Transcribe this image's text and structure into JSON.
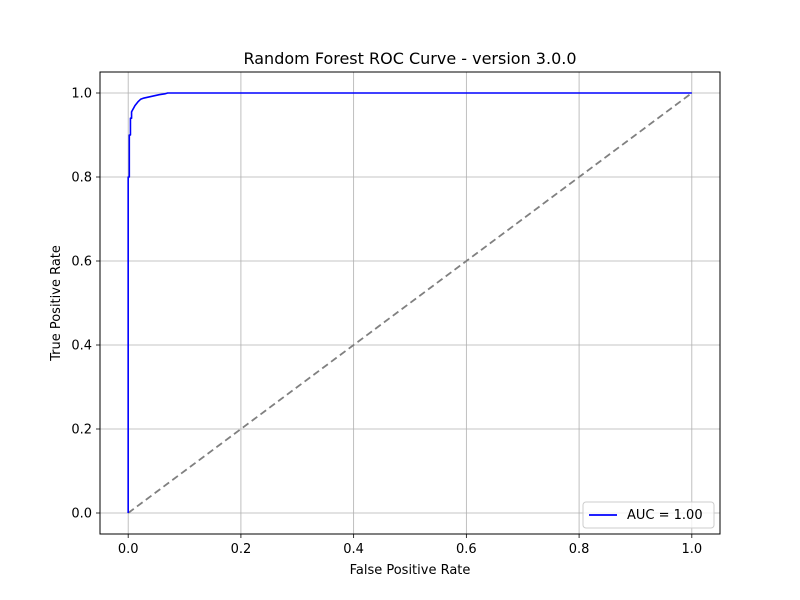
{
  "chart_data": {
    "type": "line",
    "title": "Random Forest ROC Curve - version 3.0.0",
    "xlabel": "False Positive Rate",
    "ylabel": "True Positive Rate",
    "xlim": [
      -0.05,
      1.05
    ],
    "ylim": [
      -0.05,
      1.05
    ],
    "xticks": [
      "0.0",
      "0.2",
      "0.4",
      "0.6",
      "0.8",
      "1.0"
    ],
    "yticks": [
      "0.0",
      "0.2",
      "0.4",
      "0.6",
      "0.8",
      "1.0"
    ],
    "grid": true,
    "legend_position": "lower-right",
    "series": [
      {
        "name": "AUC = 1.00",
        "color": "#0000ff",
        "style": "solid",
        "x": [
          0.0,
          0.0,
          0.002,
          0.002,
          0.004,
          0.004,
          0.006,
          0.006,
          0.008,
          0.01,
          0.012,
          0.015,
          0.018,
          0.022,
          0.028,
          0.035,
          0.045,
          0.055,
          0.065,
          0.07,
          1.0
        ],
        "y": [
          0.0,
          0.8,
          0.8,
          0.9,
          0.9,
          0.94,
          0.94,
          0.955,
          0.96,
          0.965,
          0.97,
          0.975,
          0.98,
          0.985,
          0.988,
          0.99,
          0.993,
          0.996,
          0.998,
          1.0,
          1.0
        ]
      },
      {
        "color": "#808080",
        "style": "dashed",
        "x": [
          0.0,
          1.0
        ],
        "y": [
          0.0,
          1.0
        ]
      }
    ]
  }
}
